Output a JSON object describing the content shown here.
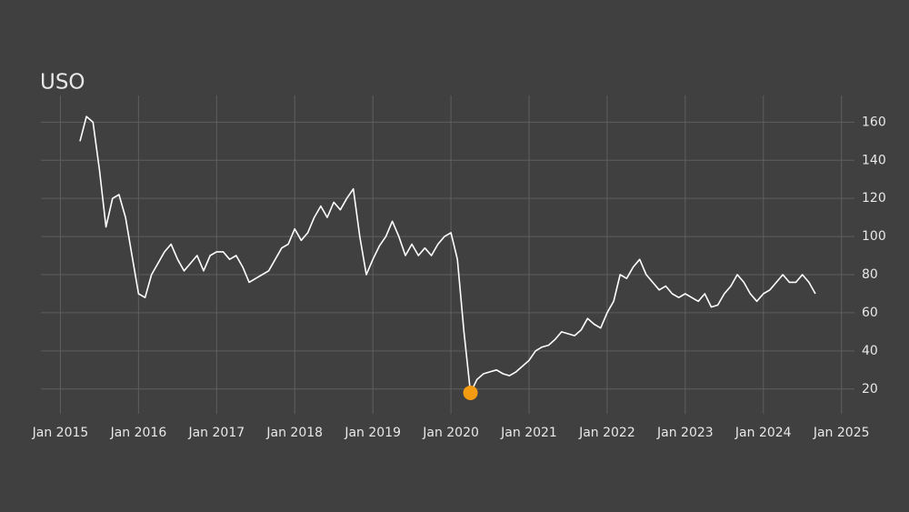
{
  "chart_data": {
    "type": "line",
    "title": "USO",
    "x": [
      "2015-04",
      "2015-05",
      "2015-06",
      "2015-07",
      "2015-08",
      "2015-09",
      "2015-10",
      "2015-11",
      "2015-12",
      "2016-01",
      "2016-02",
      "2016-03",
      "2016-04",
      "2016-05",
      "2016-06",
      "2016-07",
      "2016-08",
      "2016-09",
      "2016-10",
      "2016-11",
      "2016-12",
      "2017-01",
      "2017-02",
      "2017-03",
      "2017-04",
      "2017-05",
      "2017-06",
      "2017-07",
      "2017-08",
      "2017-09",
      "2017-10",
      "2017-11",
      "2017-12",
      "2018-01",
      "2018-02",
      "2018-03",
      "2018-04",
      "2018-05",
      "2018-06",
      "2018-07",
      "2018-08",
      "2018-09",
      "2018-10",
      "2018-11",
      "2018-12",
      "2019-01",
      "2019-02",
      "2019-03",
      "2019-04",
      "2019-05",
      "2019-06",
      "2019-07",
      "2019-08",
      "2019-09",
      "2019-10",
      "2019-11",
      "2019-12",
      "2020-01",
      "2020-02",
      "2020-03",
      "2020-04",
      "2020-05",
      "2020-06",
      "2020-07",
      "2020-08",
      "2020-09",
      "2020-10",
      "2020-11",
      "2020-12",
      "2021-01",
      "2021-02",
      "2021-03",
      "2021-04",
      "2021-05",
      "2021-06",
      "2021-07",
      "2021-08",
      "2021-09",
      "2021-10",
      "2021-11",
      "2021-12",
      "2022-01",
      "2022-02",
      "2022-03",
      "2022-04",
      "2022-05",
      "2022-06",
      "2022-07",
      "2022-08",
      "2022-09",
      "2022-10",
      "2022-11",
      "2022-12",
      "2023-01",
      "2023-02",
      "2023-03",
      "2023-04",
      "2023-05",
      "2023-06",
      "2023-07",
      "2023-08",
      "2023-09",
      "2023-10",
      "2023-11",
      "2023-12",
      "2024-01",
      "2024-02",
      "2024-03",
      "2024-04",
      "2024-05",
      "2024-06",
      "2024-07",
      "2024-08",
      "2024-09"
    ],
    "series": [
      {
        "color": "#ffffff",
        "values": [
          150,
          163,
          160,
          135,
          105,
          120,
          122,
          110,
          90,
          70,
          68,
          80,
          86,
          92,
          96,
          88,
          82,
          86,
          90,
          82,
          90,
          92,
          92,
          88,
          90,
          84,
          76,
          78,
          80,
          82,
          88,
          94,
          96,
          104,
          98,
          102,
          110,
          116,
          110,
          118,
          114,
          120,
          125,
          100,
          80,
          88,
          95,
          100,
          108,
          100,
          90,
          96,
          90,
          94,
          90,
          96,
          100,
          102,
          88,
          50,
          18,
          25,
          28,
          29,
          30,
          28,
          27,
          29,
          32,
          35,
          40,
          42,
          43,
          46,
          50,
          49,
          48,
          51,
          57,
          54,
          52,
          60,
          66,
          80,
          78,
          84,
          88,
          80,
          76,
          72,
          74,
          70,
          68,
          70,
          68,
          66,
          70,
          63,
          64,
          70,
          74,
          80,
          76,
          70,
          66,
          70,
          72,
          76,
          80,
          76,
          76,
          80,
          76,
          70
        ]
      }
    ],
    "highlight": {
      "x": "2020-04",
      "value": 18,
      "color": "#f39c12"
    },
    "xlim": [
      "2014-10",
      "2025-03"
    ],
    "xticks": [
      {
        "value": "2015-01",
        "label": "Jan 2015"
      },
      {
        "value": "2016-01",
        "label": "Jan 2016"
      },
      {
        "value": "2017-01",
        "label": "Jan 2017"
      },
      {
        "value": "2018-01",
        "label": "Jan 2018"
      },
      {
        "value": "2019-01",
        "label": "Jan 2019"
      },
      {
        "value": "2020-01",
        "label": "Jan 2020"
      },
      {
        "value": "2021-01",
        "label": "Jan 2021"
      },
      {
        "value": "2022-01",
        "label": "Jan 2022"
      },
      {
        "value": "2023-01",
        "label": "Jan 2023"
      },
      {
        "value": "2024-01",
        "label": "Jan 2024"
      },
      {
        "value": "2025-01",
        "label": "Jan 2025"
      }
    ],
    "ylim": [
      7,
      174
    ],
    "yticks": [
      20,
      40,
      60,
      80,
      100,
      120,
      140,
      160
    ],
    "grid": true
  }
}
